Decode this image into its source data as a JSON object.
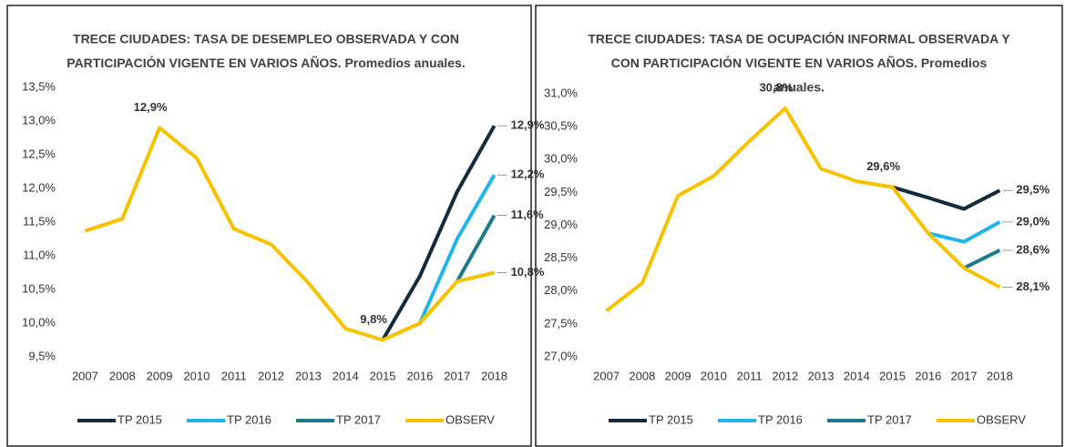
{
  "chart_data": [
    {
      "type": "line",
      "title": [
        "TRECE CIUDADES: TASA DE DESEMPLEO OBSERVADA Y CON",
        "PARTICIPACIÓN VIGENTE EN VARIOS AÑOS. Promedios anuales."
      ],
      "categories": [
        "2007",
        "2008",
        "2009",
        "2010",
        "2011",
        "2012",
        "2013",
        "2014",
        "2015",
        "2016",
        "2017",
        "2018"
      ],
      "ylim": [
        9.5,
        13.5
      ],
      "yticks": [
        {
          "value": 9.5,
          "label": "9,5%"
        },
        {
          "value": 10,
          "label": "10,0%"
        },
        {
          "value": 10.5,
          "label": "10,5%"
        },
        {
          "value": 11,
          "label": "11,0%"
        },
        {
          "value": 11.5,
          "label": "11,5%"
        },
        {
          "value": 12,
          "label": "12,0%"
        },
        {
          "value": 12.5,
          "label": "12,5%"
        },
        {
          "value": 13,
          "label": "13,0%"
        },
        {
          "value": 13.5,
          "label": "13,5%"
        }
      ],
      "legend": "bottom",
      "series": [
        {
          "name": "TP 2015",
          "color": "#132b3b",
          "label_color": "#132b3b",
          "values": [
            null,
            null,
            null,
            null,
            null,
            null,
            null,
            null,
            9.75,
            10.7,
            11.95,
            12.93
          ],
          "value_labels": [
            null,
            null,
            null,
            null,
            null,
            null,
            null,
            null,
            null,
            null,
            null,
            "12,9%"
          ]
        },
        {
          "name": "TP 2016",
          "color": "#22b5ec",
          "label_color": "#404040",
          "values": [
            null,
            null,
            null,
            null,
            null,
            null,
            null,
            null,
            null,
            10.0,
            11.25,
            12.2
          ],
          "value_labels": [
            null,
            null,
            null,
            null,
            null,
            null,
            null,
            null,
            null,
            null,
            null,
            "12,2%"
          ]
        },
        {
          "name": "TP 2017",
          "color": "#1b7b8c",
          "label_color": "#1b3a4a",
          "values": [
            null,
            null,
            null,
            null,
            null,
            null,
            null,
            null,
            null,
            null,
            10.62,
            11.6
          ],
          "value_labels": [
            null,
            null,
            null,
            null,
            null,
            null,
            null,
            null,
            null,
            null,
            null,
            "11,6%"
          ]
        },
        {
          "name": "OBSERV",
          "color": "#f7c300",
          "label_color": "#f5b800",
          "values": [
            11.37,
            11.55,
            12.9,
            12.45,
            11.4,
            11.17,
            10.6,
            9.92,
            9.75,
            10.0,
            10.62,
            10.75
          ],
          "value_labels": [
            null,
            null,
            "12,9%",
            null,
            null,
            null,
            null,
            null,
            "9,8%",
            null,
            null,
            "10,8%"
          ]
        }
      ]
    },
    {
      "type": "line",
      "title": [
        "TRECE CIUDADES: TASA DE OCUPACIÓN INFORMAL OBSERVADA Y",
        "CON PARTICIPACIÓN VIGENTE EN VARIOS AÑOS. Promedios",
        "anuales."
      ],
      "categories": [
        "2007",
        "2008",
        "2009",
        "2010",
        "2011",
        "2012",
        "2013",
        "2014",
        "2015",
        "2016",
        "2017",
        "2018"
      ],
      "ylim": [
        27.0,
        31.0
      ],
      "yticks": [
        {
          "value": 27,
          "label": "27,0%"
        },
        {
          "value": 27.5,
          "label": "27,5%"
        },
        {
          "value": 28,
          "label": "28,0%"
        },
        {
          "value": 28.5,
          "label": "28,5%"
        },
        {
          "value": 29,
          "label": "29,0%"
        },
        {
          "value": 29.5,
          "label": "29,5%"
        },
        {
          "value": 30,
          "label": "30,0%"
        },
        {
          "value": 30.5,
          "label": "30,5%"
        },
        {
          "value": 31,
          "label": "31,0%"
        }
      ],
      "legend": "bottom",
      "series": [
        {
          "name": "TP 2015",
          "color": "#132b3b",
          "label_color": "#132b3b",
          "values": [
            null,
            null,
            null,
            null,
            null,
            null,
            null,
            null,
            29.58,
            29.42,
            29.25,
            29.53
          ],
          "value_labels": [
            null,
            null,
            null,
            null,
            null,
            null,
            null,
            null,
            null,
            null,
            null,
            "29,5%"
          ]
        },
        {
          "name": "TP 2016",
          "color": "#22b5ec",
          "label_color": "#404040",
          "values": [
            null,
            null,
            null,
            null,
            null,
            null,
            null,
            null,
            null,
            28.88,
            28.75,
            29.05
          ],
          "value_labels": [
            null,
            null,
            null,
            null,
            null,
            null,
            null,
            null,
            null,
            null,
            null,
            "29,0%"
          ]
        },
        {
          "name": "TP 2017",
          "color": "#1b7b8c",
          "label_color": "#1b3a4a",
          "values": [
            null,
            null,
            null,
            null,
            null,
            null,
            null,
            null,
            null,
            null,
            28.35,
            28.62
          ],
          "value_labels": [
            null,
            null,
            null,
            null,
            null,
            null,
            null,
            null,
            null,
            null,
            null,
            "28,6%"
          ]
        },
        {
          "name": "OBSERV",
          "color": "#f7c300",
          "label_color": "#f5b800",
          "values": [
            27.7,
            28.12,
            29.45,
            29.75,
            30.28,
            30.78,
            29.86,
            29.67,
            29.58,
            28.88,
            28.35,
            28.06
          ],
          "value_labels": [
            null,
            null,
            null,
            null,
            null,
            "30,8%",
            null,
            null,
            "29,6%",
            null,
            null,
            "28,1%"
          ]
        }
      ]
    }
  ]
}
